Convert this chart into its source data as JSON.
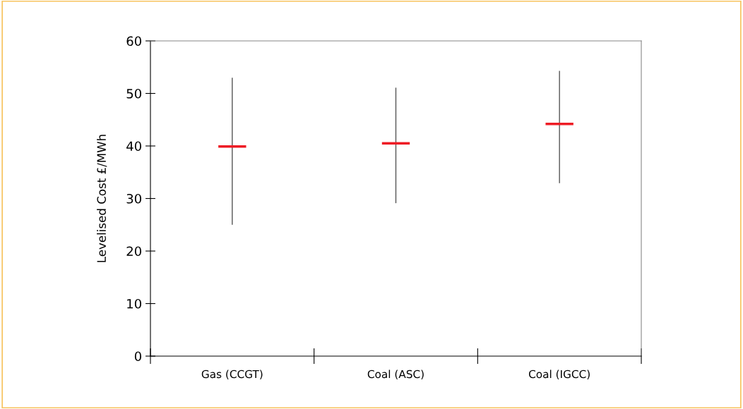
{
  "chart_data": {
    "type": "box",
    "ylabel": "Levelised Cost £/MWh",
    "categories": [
      "Gas (CCGT)",
      "Coal (ASC)",
      "Coal (IGCC)"
    ],
    "series": [
      {
        "color": "#ee1c25",
        "boxes": [
          {
            "low": 25.1,
            "q1": 39.9,
            "median": 39.9,
            "q3": 39.9,
            "high": 52.9
          },
          {
            "low": 29.2,
            "q1": 40.5,
            "median": 40.5,
            "q3": 40.5,
            "high": 51.0
          },
          {
            "low": 33.0,
            "q1": 44.2,
            "median": 44.2,
            "q3": 44.2,
            "high": 54.2
          }
        ]
      }
    ],
    "ylim": [
      0,
      60
    ],
    "yticks": [
      0,
      10,
      20,
      30,
      40,
      50,
      60
    ]
  }
}
